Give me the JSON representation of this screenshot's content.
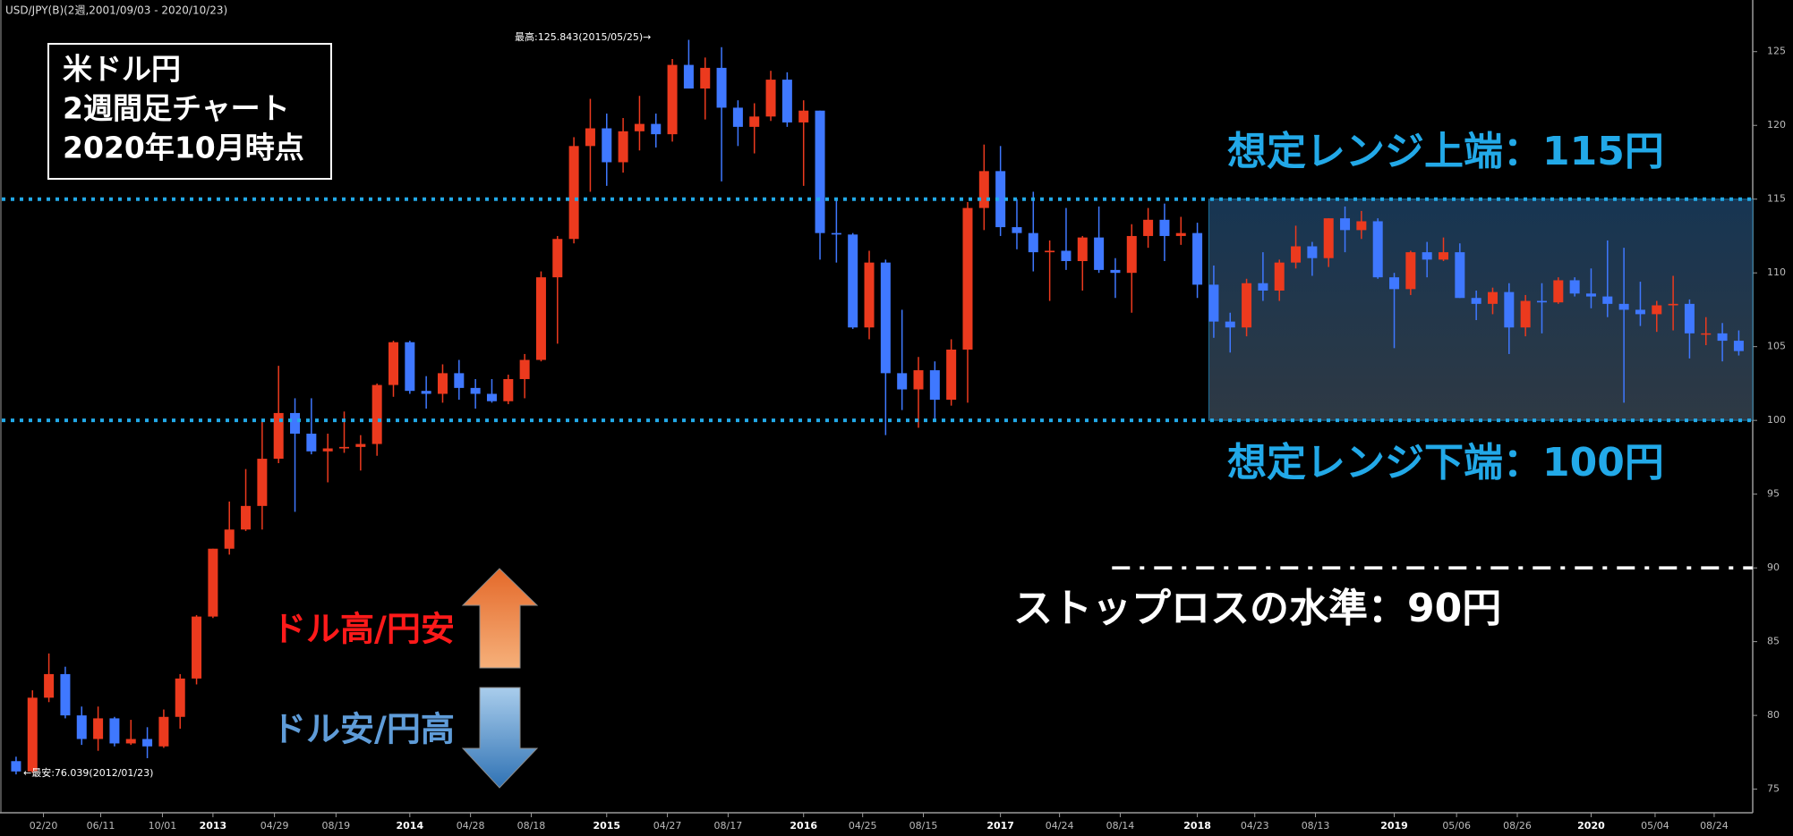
{
  "chart_data": {
    "type": "candlestick",
    "header": "USD/JPY(B)(2週,2001/09/03 - 2020/10/23)",
    "title_lines": [
      "米ドル円",
      "2週間足チャート",
      "2020年10月時点"
    ],
    "x": [
      0,
      1,
      2,
      3,
      4,
      5,
      6,
      7,
      8,
      9,
      10,
      11,
      12,
      13,
      14,
      15,
      16,
      17,
      18,
      19,
      20,
      21,
      22,
      23,
      24,
      25,
      26,
      27,
      28,
      29,
      30,
      31,
      32,
      33,
      34,
      35,
      36,
      37,
      38,
      39,
      40,
      41,
      42,
      43,
      44,
      45,
      46,
      47,
      48,
      49,
      50,
      51,
      52,
      53,
      54,
      55,
      56,
      57,
      58,
      59,
      60,
      61,
      62,
      63,
      64,
      65,
      66,
      67,
      68,
      69,
      70,
      71,
      72,
      73,
      74,
      75,
      76,
      77,
      78,
      79,
      80,
      81,
      82,
      83,
      84,
      85,
      86,
      87,
      88,
      89,
      90,
      91,
      92,
      93,
      94,
      95,
      96,
      97,
      98,
      99,
      100,
      101,
      102,
      103,
      104,
      105
    ],
    "ohlc": [
      [
        76.9,
        77.2,
        76.0,
        76.2
      ],
      [
        76.2,
        81.7,
        76.1,
        81.2
      ],
      [
        81.2,
        84.2,
        80.9,
        82.8
      ],
      [
        82.8,
        83.3,
        79.8,
        80.0
      ],
      [
        80.0,
        80.6,
        78.0,
        78.4
      ],
      [
        78.4,
        80.6,
        77.6,
        79.8
      ],
      [
        79.8,
        79.9,
        77.9,
        78.1
      ],
      [
        78.1,
        79.7,
        78.0,
        78.4
      ],
      [
        78.4,
        79.2,
        77.1,
        77.9
      ],
      [
        77.9,
        80.4,
        77.8,
        79.9
      ],
      [
        79.9,
        82.8,
        79.1,
        82.5
      ],
      [
        82.5,
        86.8,
        82.1,
        86.7
      ],
      [
        86.7,
        91.3,
        86.6,
        91.3
      ],
      [
        91.3,
        94.5,
        90.9,
        92.6
      ],
      [
        92.6,
        96.7,
        92.5,
        94.2
      ],
      [
        94.2,
        99.9,
        92.6,
        97.4
      ],
      [
        97.4,
        103.7,
        97.1,
        100.5
      ],
      [
        100.5,
        101.5,
        93.8,
        99.1
      ],
      [
        99.1,
        101.5,
        97.7,
        97.9
      ],
      [
        97.9,
        99.1,
        95.8,
        98.1
      ],
      [
        98.1,
        100.6,
        97.8,
        98.2
      ],
      [
        98.2,
        99.0,
        96.6,
        98.4
      ],
      [
        98.4,
        102.5,
        97.6,
        102.4
      ],
      [
        102.4,
        105.4,
        101.6,
        105.3
      ],
      [
        105.3,
        105.4,
        101.8,
        102.0
      ],
      [
        102.0,
        103.0,
        100.8,
        101.8
      ],
      [
        101.8,
        103.8,
        101.2,
        103.2
      ],
      [
        103.2,
        104.1,
        101.4,
        102.2
      ],
      [
        102.2,
        102.8,
        100.8,
        101.8
      ],
      [
        101.8,
        102.8,
        101.2,
        101.3
      ],
      [
        101.3,
        103.1,
        101.1,
        102.8
      ],
      [
        102.8,
        104.5,
        101.5,
        104.1
      ],
      [
        104.1,
        110.1,
        104.0,
        109.7
      ],
      [
        109.7,
        112.5,
        105.2,
        112.3
      ],
      [
        112.3,
        119.2,
        112.0,
        118.6
      ],
      [
        118.6,
        121.8,
        115.5,
        119.8
      ],
      [
        119.8,
        120.8,
        115.9,
        117.5
      ],
      [
        117.5,
        120.5,
        116.8,
        119.6
      ],
      [
        119.6,
        122.0,
        118.3,
        120.1
      ],
      [
        120.1,
        120.8,
        118.5,
        119.4
      ],
      [
        119.4,
        124.5,
        118.9,
        124.1
      ],
      [
        124.1,
        125.8,
        122.5,
        122.5
      ],
      [
        122.5,
        124.6,
        120.4,
        123.9
      ],
      [
        123.9,
        125.3,
        116.2,
        121.2
      ],
      [
        121.2,
        121.7,
        118.6,
        119.9
      ],
      [
        119.9,
        121.5,
        118.1,
        120.6
      ],
      [
        120.6,
        123.7,
        120.3,
        123.1
      ],
      [
        123.1,
        123.6,
        119.9,
        120.2
      ],
      [
        120.2,
        121.7,
        115.9,
        121.0
      ],
      [
        121.0,
        121.0,
        110.9,
        112.7
      ],
      [
        112.7,
        114.9,
        110.7,
        112.6
      ],
      [
        112.6,
        112.7,
        106.2,
        106.3
      ],
      [
        106.3,
        111.5,
        105.5,
        110.7
      ],
      [
        110.7,
        110.9,
        99.0,
        103.2
      ],
      [
        103.2,
        107.5,
        100.7,
        102.1
      ],
      [
        102.1,
        104.3,
        99.5,
        103.4
      ],
      [
        103.4,
        104.0,
        100.1,
        101.4
      ],
      [
        101.4,
        105.5,
        101.0,
        104.8
      ],
      [
        104.8,
        114.8,
        101.2,
        114.4
      ],
      [
        114.4,
        118.7,
        112.9,
        116.9
      ],
      [
        116.9,
        118.6,
        112.5,
        113.1
      ],
      [
        113.1,
        115.0,
        111.6,
        112.7
      ],
      [
        112.7,
        115.5,
        110.1,
        111.4
      ],
      [
        111.4,
        112.2,
        108.1,
        111.5
      ],
      [
        111.5,
        114.4,
        110.2,
        110.8
      ],
      [
        110.8,
        112.5,
        108.8,
        112.4
      ],
      [
        112.4,
        114.5,
        110.0,
        110.2
      ],
      [
        110.2,
        111.0,
        108.3,
        110.0
      ],
      [
        110.0,
        113.3,
        107.3,
        112.5
      ],
      [
        112.5,
        114.4,
        111.7,
        113.6
      ],
      [
        113.6,
        114.7,
        110.8,
        112.5
      ],
      [
        112.5,
        113.8,
        111.9,
        112.7
      ],
      [
        112.7,
        113.4,
        108.3,
        109.2
      ],
      [
        109.2,
        110.5,
        105.6,
        106.7
      ],
      [
        106.7,
        107.3,
        104.6,
        106.3
      ],
      [
        106.3,
        109.6,
        105.7,
        109.3
      ],
      [
        109.3,
        111.4,
        108.1,
        108.8
      ],
      [
        108.8,
        110.9,
        108.1,
        110.7
      ],
      [
        110.7,
        113.2,
        110.3,
        111.8
      ],
      [
        111.8,
        112.1,
        109.8,
        111.0
      ],
      [
        111.0,
        113.7,
        110.4,
        113.7
      ],
      [
        113.7,
        114.5,
        111.4,
        112.9
      ],
      [
        112.9,
        114.2,
        112.3,
        113.5
      ],
      [
        113.5,
        113.7,
        109.6,
        109.7
      ],
      [
        109.7,
        110.0,
        104.9,
        108.9
      ],
      [
        108.9,
        111.5,
        108.5,
        111.4
      ],
      [
        111.4,
        112.1,
        109.7,
        110.9
      ],
      [
        110.9,
        112.4,
        110.8,
        111.4
      ],
      [
        111.4,
        112.0,
        108.3,
        108.3
      ],
      [
        108.3,
        108.8,
        106.8,
        107.9
      ],
      [
        107.9,
        109.0,
        107.2,
        108.7
      ],
      [
        108.7,
        109.3,
        104.5,
        106.3
      ],
      [
        106.3,
        108.5,
        105.7,
        108.1
      ],
      [
        108.1,
        109.3,
        105.9,
        108.0
      ],
      [
        108.0,
        109.7,
        107.9,
        109.5
      ],
      [
        109.5,
        109.7,
        108.4,
        108.6
      ],
      [
        108.6,
        110.3,
        107.6,
        108.4
      ],
      [
        108.4,
        112.2,
        107.0,
        107.9
      ],
      [
        107.9,
        111.7,
        101.2,
        107.5
      ],
      [
        107.5,
        109.4,
        106.4,
        107.2
      ],
      [
        107.2,
        108.1,
        106.0,
        107.8
      ],
      [
        107.8,
        109.8,
        106.1,
        107.9
      ],
      [
        107.9,
        108.2,
        104.2,
        105.9
      ],
      [
        105.9,
        107.0,
        105.1,
        105.9
      ],
      [
        105.9,
        106.6,
        104.0,
        105.4
      ],
      [
        105.4,
        106.1,
        104.4,
        104.7
      ]
    ],
    "up_color": "#ec3a1e",
    "down_color": "#3f78ff",
    "xlim": [
      -0.63,
      105.85
    ],
    "ylim": [
      73.4,
      128.5
    ],
    "yticks": [
      125,
      120,
      115,
      110,
      105,
      100,
      95,
      90,
      85,
      80,
      75
    ],
    "xticks": [
      {
        "value": 1.67,
        "label": "02/20"
      },
      {
        "value": 5.16,
        "label": "06/11"
      },
      {
        "value": 8.92,
        "label": "10/01"
      },
      {
        "value": 12,
        "label": "2013"
      },
      {
        "value": 15.75,
        "label": "04/29"
      },
      {
        "value": 19.5,
        "label": "08/19"
      },
      {
        "value": 24,
        "label": "2014"
      },
      {
        "value": 27.7,
        "label": "04/28"
      },
      {
        "value": 31.4,
        "label": "08/18"
      },
      {
        "value": 36,
        "label": "2015"
      },
      {
        "value": 39.7,
        "label": "04/27"
      },
      {
        "value": 43.4,
        "label": "08/17"
      },
      {
        "value": 48,
        "label": "2016"
      },
      {
        "value": 51.6,
        "label": "04/25"
      },
      {
        "value": 55.3,
        "label": "08/15"
      },
      {
        "value": 60,
        "label": "2017"
      },
      {
        "value": 63.6,
        "label": "04/24"
      },
      {
        "value": 67.3,
        "label": "08/14"
      },
      {
        "value": 72,
        "label": "2018"
      },
      {
        "value": 75.5,
        "label": "04/23"
      },
      {
        "value": 79.2,
        "label": "08/13"
      },
      {
        "value": 84,
        "label": "2019"
      },
      {
        "value": 87.8,
        "label": "05/06"
      },
      {
        "value": 91.5,
        "label": "08/26"
      },
      {
        "value": 96,
        "label": "2020"
      },
      {
        "value": 99.9,
        "label": "05/04"
      },
      {
        "value": 103.5,
        "label": "08/24"
      }
    ],
    "grid": false,
    "levels": [
      {
        "label": "想定レンジ上端：115円",
        "value": 115
      },
      {
        "label": "想定レンジ下端：100円",
        "value": 100
      }
    ],
    "level_color": "#22a9e8",
    "range_start": 72.7,
    "stop": {
      "label": "ストップロスの水準：90円",
      "value": 90,
      "start": 66.8
    },
    "annotations": {
      "high": "最高:125.843(2015/05/25)→",
      "low": "←最安:76.039(2012/01/23)"
    },
    "arrows": {
      "up_label": "ドル高/円安",
      "down_label": "ドル安/円高"
    }
  }
}
